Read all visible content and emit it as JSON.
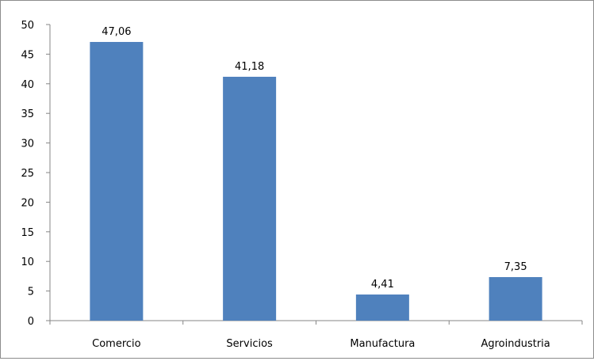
{
  "chart_data": {
    "type": "bar",
    "categories": [
      "Comercio",
      "Servicios",
      "Manufactura",
      "Agroindustria"
    ],
    "values": [
      47.06,
      41.18,
      4.41,
      7.35
    ],
    "data_labels": [
      "47,06",
      "41,18",
      "4,41",
      "7,35"
    ],
    "ylim": [
      0,
      50
    ],
    "y_ticks": [
      0,
      5,
      10,
      15,
      20,
      25,
      30,
      35,
      40,
      45,
      50
    ],
    "grid": false,
    "legend": "none",
    "bar_color": "#4f81bd",
    "axis_color": "#868686"
  }
}
